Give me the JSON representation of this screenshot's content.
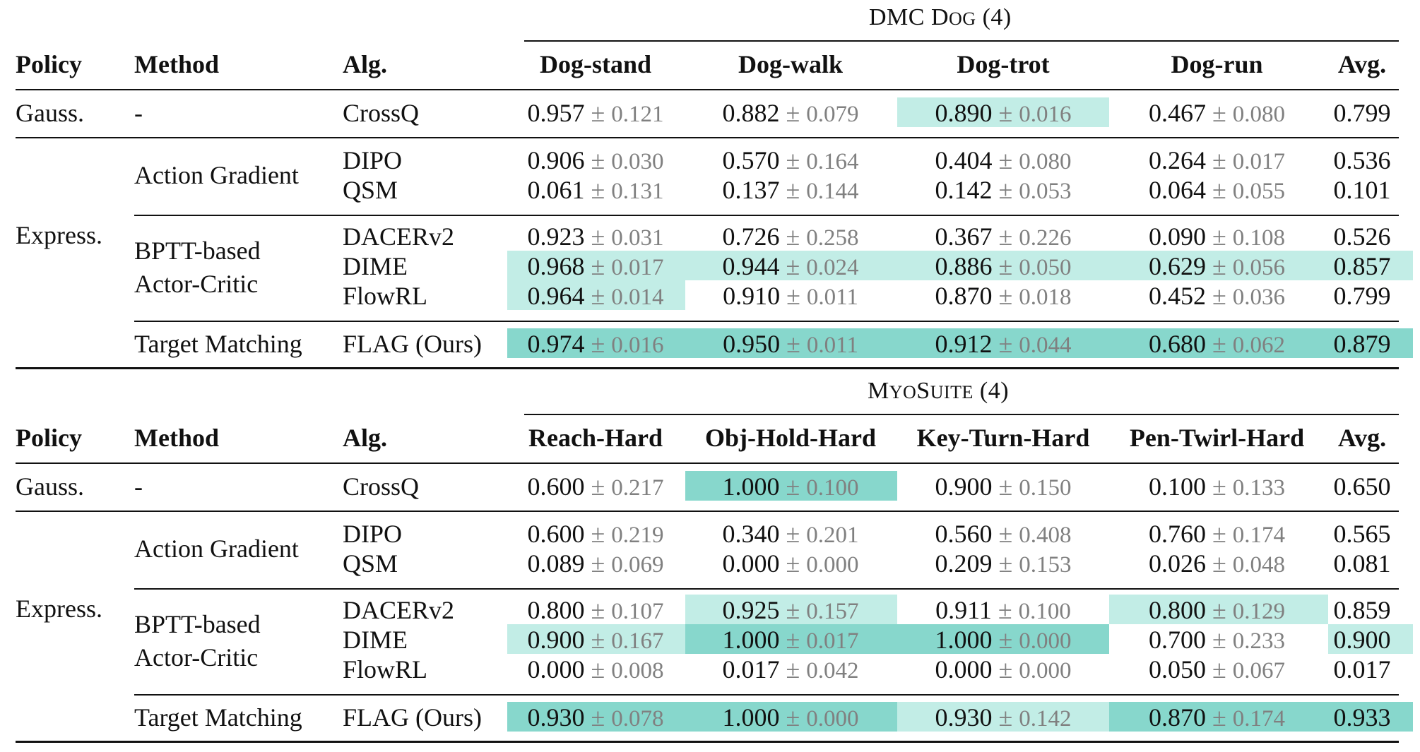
{
  "colors": {
    "high": "#87d7cc",
    "mid": "#c2ede6",
    "std": "#808080"
  },
  "tables": [
    {
      "group_label": "DMC",
      "group_name_caps": "D",
      "group_name_small": "OG",
      "group_count": "(4)",
      "headers": {
        "policy": "Policy",
        "method": "Method",
        "alg": "Alg.",
        "tasks": [
          "Dog-stand",
          "Dog-walk",
          "Dog-trot",
          "Dog-run"
        ],
        "avg": "Avg."
      },
      "labels": {
        "gauss_policy": "Gauss.",
        "gauss_method": "-",
        "express_policy": "Express.",
        "action_gradient": "Action Gradient",
        "bptt_line1": "BPTT-based",
        "bptt_line2": "Actor-Critic",
        "target_matching": "Target Matching"
      },
      "rows": [
        {
          "alg": "CrossQ",
          "cells": [
            {
              "mean": "0.957",
              "std": "0.121",
              "hl": ""
            },
            {
              "mean": "0.882",
              "std": "0.079",
              "hl": ""
            },
            {
              "mean": "0.890",
              "std": "0.016",
              "hl": "mid"
            },
            {
              "mean": "0.467",
              "std": "0.080",
              "hl": ""
            }
          ],
          "avg": {
            "value": "0.799",
            "hl": ""
          }
        },
        {
          "alg": "DIPO",
          "cells": [
            {
              "mean": "0.906",
              "std": "0.030",
              "hl": ""
            },
            {
              "mean": "0.570",
              "std": "0.164",
              "hl": ""
            },
            {
              "mean": "0.404",
              "std": "0.080",
              "hl": ""
            },
            {
              "mean": "0.264",
              "std": "0.017",
              "hl": ""
            }
          ],
          "avg": {
            "value": "0.536",
            "hl": ""
          }
        },
        {
          "alg": "QSM",
          "cells": [
            {
              "mean": "0.061",
              "std": "0.131",
              "hl": ""
            },
            {
              "mean": "0.137",
              "std": "0.144",
              "hl": ""
            },
            {
              "mean": "0.142",
              "std": "0.053",
              "hl": ""
            },
            {
              "mean": "0.064",
              "std": "0.055",
              "hl": ""
            }
          ],
          "avg": {
            "value": "0.101",
            "hl": ""
          }
        },
        {
          "alg": "DACERv2",
          "cells": [
            {
              "mean": "0.923",
              "std": "0.031",
              "hl": ""
            },
            {
              "mean": "0.726",
              "std": "0.258",
              "hl": ""
            },
            {
              "mean": "0.367",
              "std": "0.226",
              "hl": ""
            },
            {
              "mean": "0.090",
              "std": "0.108",
              "hl": ""
            }
          ],
          "avg": {
            "value": "0.526",
            "hl": ""
          }
        },
        {
          "alg": "DIME",
          "cells": [
            {
              "mean": "0.968",
              "std": "0.017",
              "hl": "mid"
            },
            {
              "mean": "0.944",
              "std": "0.024",
              "hl": "mid"
            },
            {
              "mean": "0.886",
              "std": "0.050",
              "hl": "mid"
            },
            {
              "mean": "0.629",
              "std": "0.056",
              "hl": "mid"
            }
          ],
          "avg": {
            "value": "0.857",
            "hl": "mid"
          }
        },
        {
          "alg": "FlowRL",
          "cells": [
            {
              "mean": "0.964",
              "std": "0.014",
              "hl": "mid"
            },
            {
              "mean": "0.910",
              "std": "0.011",
              "hl": ""
            },
            {
              "mean": "0.870",
              "std": "0.018",
              "hl": ""
            },
            {
              "mean": "0.452",
              "std": "0.036",
              "hl": ""
            }
          ],
          "avg": {
            "value": "0.799",
            "hl": ""
          }
        },
        {
          "alg": "FLAG (Ours)",
          "cells": [
            {
              "mean": "0.974",
              "std": "0.016",
              "hl": "high"
            },
            {
              "mean": "0.950",
              "std": "0.011",
              "hl": "high"
            },
            {
              "mean": "0.912",
              "std": "0.044",
              "hl": "high"
            },
            {
              "mean": "0.680",
              "std": "0.062",
              "hl": "high"
            }
          ],
          "avg": {
            "value": "0.879",
            "hl": "high"
          }
        }
      ]
    },
    {
      "group_label": "",
      "group_name_caps": "M",
      "group_name_small": "YO",
      "group_name_caps2": "S",
      "group_name_small2": "UITE",
      "group_count": "(4)",
      "headers": {
        "policy": "Policy",
        "method": "Method",
        "alg": "Alg.",
        "tasks": [
          "Reach-Hard",
          "Obj-Hold-Hard",
          "Key-Turn-Hard",
          "Pen-Twirl-Hard"
        ],
        "avg": "Avg."
      },
      "labels": {
        "gauss_policy": "Gauss.",
        "gauss_method": "-",
        "express_policy": "Express.",
        "action_gradient": "Action Gradient",
        "bptt_line1": "BPTT-based",
        "bptt_line2": "Actor-Critic",
        "target_matching": "Target Matching"
      },
      "rows": [
        {
          "alg": "CrossQ",
          "cells": [
            {
              "mean": "0.600",
              "std": "0.217",
              "hl": ""
            },
            {
              "mean": "1.000",
              "std": "0.100",
              "hl": "high"
            },
            {
              "mean": "0.900",
              "std": "0.150",
              "hl": ""
            },
            {
              "mean": "0.100",
              "std": "0.133",
              "hl": ""
            }
          ],
          "avg": {
            "value": "0.650",
            "hl": ""
          }
        },
        {
          "alg": "DIPO",
          "cells": [
            {
              "mean": "0.600",
              "std": "0.219",
              "hl": ""
            },
            {
              "mean": "0.340",
              "std": "0.201",
              "hl": ""
            },
            {
              "mean": "0.560",
              "std": "0.408",
              "hl": ""
            },
            {
              "mean": "0.760",
              "std": "0.174",
              "hl": ""
            }
          ],
          "avg": {
            "value": "0.565",
            "hl": ""
          }
        },
        {
          "alg": "QSM",
          "cells": [
            {
              "mean": "0.089",
              "std": "0.069",
              "hl": ""
            },
            {
              "mean": "0.000",
              "std": "0.000",
              "hl": ""
            },
            {
              "mean": "0.209",
              "std": "0.153",
              "hl": ""
            },
            {
              "mean": "0.026",
              "std": "0.048",
              "hl": ""
            }
          ],
          "avg": {
            "value": "0.081",
            "hl": ""
          }
        },
        {
          "alg": "DACERv2",
          "cells": [
            {
              "mean": "0.800",
              "std": "0.107",
              "hl": ""
            },
            {
              "mean": "0.925",
              "std": "0.157",
              "hl": "mid"
            },
            {
              "mean": "0.911",
              "std": "0.100",
              "hl": ""
            },
            {
              "mean": "0.800",
              "std": "0.129",
              "hl": "mid"
            }
          ],
          "avg": {
            "value": "0.859",
            "hl": ""
          }
        },
        {
          "alg": "DIME",
          "cells": [
            {
              "mean": "0.900",
              "std": "0.167",
              "hl": "mid"
            },
            {
              "mean": "1.000",
              "std": "0.017",
              "hl": "high"
            },
            {
              "mean": "1.000",
              "std": "0.000",
              "hl": "high"
            },
            {
              "mean": "0.700",
              "std": "0.233",
              "hl": ""
            }
          ],
          "avg": {
            "value": "0.900",
            "hl": "mid"
          }
        },
        {
          "alg": "FlowRL",
          "cells": [
            {
              "mean": "0.000",
              "std": "0.008",
              "hl": ""
            },
            {
              "mean": "0.017",
              "std": "0.042",
              "hl": ""
            },
            {
              "mean": "0.000",
              "std": "0.000",
              "hl": ""
            },
            {
              "mean": "0.050",
              "std": "0.067",
              "hl": ""
            }
          ],
          "avg": {
            "value": "0.017",
            "hl": ""
          }
        },
        {
          "alg": "FLAG (Ours)",
          "cells": [
            {
              "mean": "0.930",
              "std": "0.078",
              "hl": "high"
            },
            {
              "mean": "1.000",
              "std": "0.000",
              "hl": "high"
            },
            {
              "mean": "0.930",
              "std": "0.142",
              "hl": "mid"
            },
            {
              "mean": "0.870",
              "std": "0.174",
              "hl": "high"
            }
          ],
          "avg": {
            "value": "0.933",
            "hl": "high"
          }
        }
      ]
    }
  ]
}
